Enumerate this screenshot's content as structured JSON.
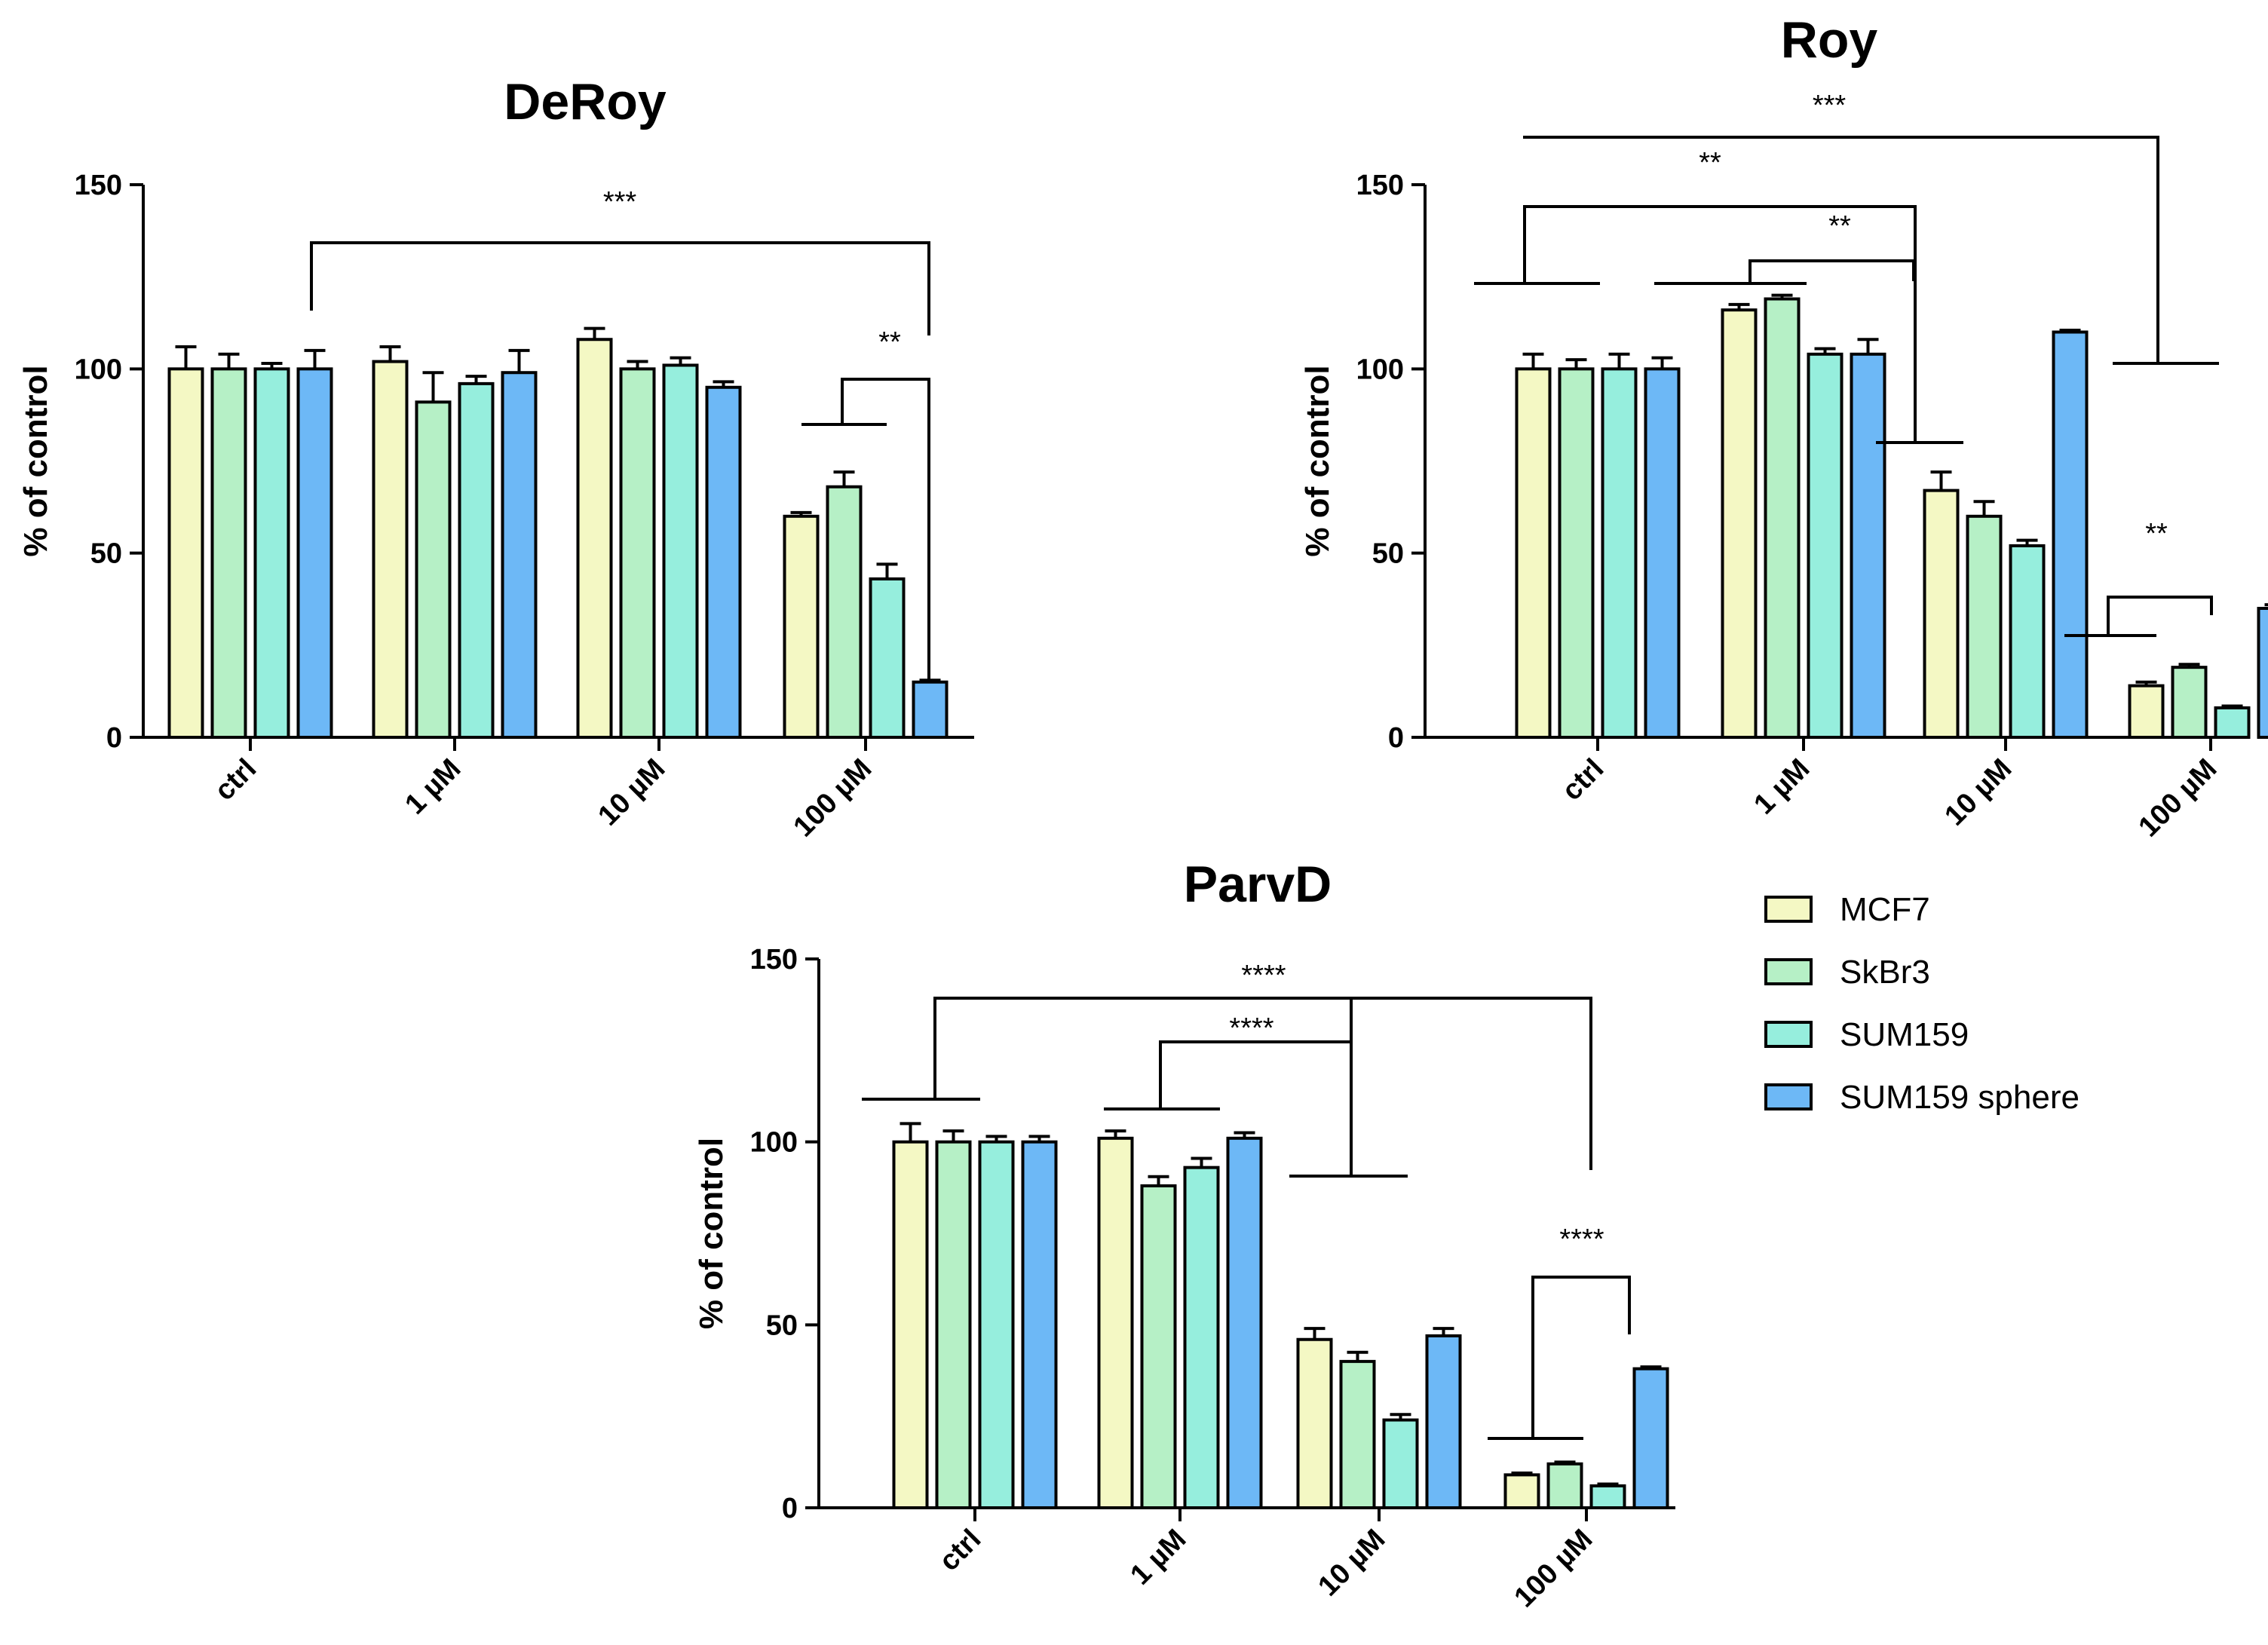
{
  "chart_data": [
    {
      "type": "bar",
      "title": "DeRoy",
      "ylabel": "% of control",
      "xlabel": "",
      "ylim": [
        0,
        150
      ],
      "yticks": [
        0,
        50,
        100,
        150
      ],
      "categories": [
        "ctrl",
        "1 µM",
        "10 µM",
        "100 µM"
      ],
      "series": [
        {
          "name": "MCF7",
          "values": [
            100,
            102,
            108,
            60
          ],
          "errors": [
            6,
            4,
            3,
            1
          ]
        },
        {
          "name": "SkBr3",
          "values": [
            100,
            91,
            100,
            68
          ],
          "errors": [
            4,
            8,
            2,
            4
          ]
        },
        {
          "name": "SUM159",
          "values": [
            100,
            96,
            101,
            43
          ],
          "errors": [
            1.5,
            2,
            2,
            4
          ]
        },
        {
          "name": "SUM159 sphere",
          "values": [
            100,
            99,
            95,
            null
          ],
          "errors": [
            5,
            6,
            1.5,
            null
          ]
        }
      ],
      "annotations": [
        {
          "label": "***",
          "from": "ctrl",
          "to": "100 µM SUM159 sphere"
        },
        {
          "label": "**",
          "from": "100 µM MCF7–SUM159",
          "to": "100 µM SUM159 sphere"
        }
      ]
    },
    {
      "type": "bar",
      "title": "Roy",
      "ylabel": "% of control",
      "xlabel": "",
      "ylim": [
        0,
        150
      ],
      "yticks": [
        0,
        50,
        100,
        150
      ],
      "categories": [
        "ctrl",
        "1 µM",
        "10 µM",
        "100 µM"
      ],
      "series": [
        {
          "name": "MCF7",
          "values": [
            100,
            116,
            67,
            14
          ],
          "errors": [
            4,
            1.5,
            5,
            1
          ]
        },
        {
          "name": "SkBr3",
          "values": [
            100,
            119,
            60,
            19
          ],
          "errors": [
            2.5,
            1,
            4,
            0.8
          ]
        },
        {
          "name": "SUM159",
          "values": [
            100,
            104,
            52,
            8
          ],
          "errors": [
            4,
            1.5,
            1.5,
            0.5
          ]
        },
        {
          "name": "SUM159 sphere",
          "values": [
            100,
            104,
            110,
            35
          ],
          "errors": [
            3,
            4,
            0.5,
            1
          ]
        }
      ],
      "annotations": [
        {
          "label": "***",
          "from": "ctrl",
          "to": "100 µM"
        },
        {
          "label": "**",
          "from": "ctrl",
          "to": "10 µM"
        },
        {
          "label": "**",
          "from": "1 µM",
          "to": "10 µM"
        },
        {
          "label": "**",
          "from": "100 µM MCF7–SUM159",
          "to": "100 µM SUM159 sphere"
        }
      ]
    },
    {
      "type": "bar",
      "title": "ParvD",
      "ylabel": "% of control",
      "xlabel": "",
      "ylim": [
        0,
        150
      ],
      "yticks": [
        0,
        50,
        100,
        150
      ],
      "categories": [
        "ctrl",
        "1 µM",
        "10 µM",
        "100 µM"
      ],
      "series": [
        {
          "name": "MCF7",
          "values": [
            100,
            101,
            46,
            9
          ],
          "errors": [
            5,
            2,
            3,
            0.5
          ]
        },
        {
          "name": "SkBr3",
          "values": [
            100,
            88,
            40,
            12
          ],
          "errors": [
            3,
            2.5,
            2.5,
            0.5
          ]
        },
        {
          "name": "SUM159",
          "values": [
            100,
            93,
            24,
            6
          ],
          "errors": [
            1.5,
            2.5,
            1.5,
            0.5
          ]
        },
        {
          "name": "SUM159 sphere",
          "values": [
            100,
            101,
            47,
            38
          ],
          "errors": [
            1.5,
            1.5,
            2,
            0.5
          ]
        }
      ],
      "annotations": [
        {
          "label": "****",
          "from": "ctrl",
          "to": "100 µM"
        },
        {
          "label": "****",
          "from": "1 µM",
          "to": "10 µM"
        },
        {
          "label": "****",
          "from": "100 µM MCF7–SUM159",
          "to": "100 µM SUM159 sphere"
        }
      ]
    }
  ],
  "legend": {
    "position": "right",
    "entries": [
      {
        "name": "MCF7",
        "color": "#f4f8c4"
      },
      {
        "name": "SkBr3",
        "color": "#b6f0c6"
      },
      {
        "name": "SUM159",
        "color": "#96eedd"
      },
      {
        "name": "SUM159 sphere",
        "color": "#6db8f6"
      }
    ]
  },
  "extra_bars": [
    {
      "chart": "DeRoy",
      "category": "100 µM",
      "series": "SUM159 sphere",
      "value": 15,
      "error": 0.5
    }
  ]
}
